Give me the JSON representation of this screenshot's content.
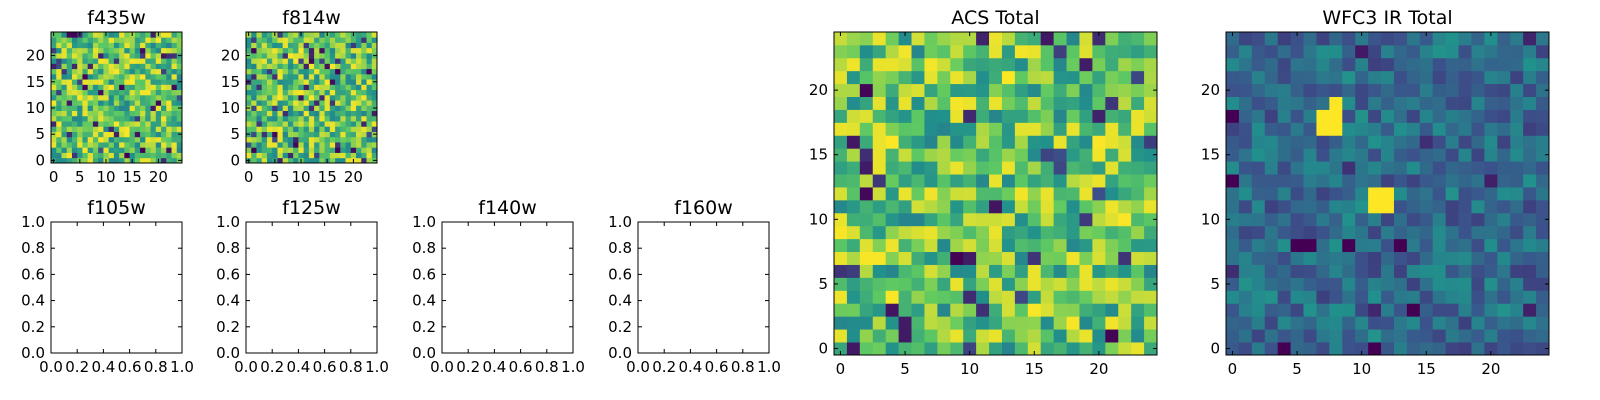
{
  "colormap": "viridis",
  "colors": {
    "background": "#ffffff",
    "axes": "#000000",
    "viridis_stops": [
      "#440154",
      "#3b528b",
      "#21918c",
      "#5ec962",
      "#fde725"
    ]
  },
  "chart_data": [
    {
      "type": "heatmap",
      "title": "f435w",
      "xlabel": "",
      "ylabel": "",
      "xticks": [
        "0",
        "5",
        "10",
        "15",
        "20"
      ],
      "yticks": [
        "0",
        "5",
        "10",
        "15",
        "20"
      ],
      "xlim": [
        -0.5,
        24.5
      ],
      "ylim": [
        -0.5,
        24.5
      ],
      "grid_size": 25,
      "colormap": "viridis",
      "pixel_seed": 11,
      "value_profile": "high-noise",
      "note_values": "25x25 pixel map; individual pixel values are not printed, values normalized 0-1"
    },
    {
      "type": "heatmap",
      "title": "f814w",
      "xlabel": "",
      "ylabel": "",
      "xticks": [
        "0",
        "5",
        "10",
        "15",
        "20"
      ],
      "yticks": [
        "0",
        "5",
        "10",
        "15",
        "20"
      ],
      "xlim": [
        -0.5,
        24.5
      ],
      "ylim": [
        -0.5,
        24.5
      ],
      "grid_size": 25,
      "colormap": "viridis",
      "pixel_seed": 23,
      "value_profile": "high-noise"
    },
    {
      "type": "scatter",
      "title": "f105w",
      "xlabel": "",
      "ylabel": "",
      "xticks": [
        "0.0",
        "0.2",
        "0.4",
        "0.6",
        "0.8",
        "1.0"
      ],
      "yticks": [
        "0.0",
        "0.2",
        "0.4",
        "0.6",
        "0.8",
        "1.0"
      ],
      "xlim": [
        0,
        1
      ],
      "ylim": [
        0,
        1
      ],
      "values": []
    },
    {
      "type": "scatter",
      "title": "f125w",
      "xlabel": "",
      "ylabel": "",
      "xticks": [
        "0.0",
        "0.2",
        "0.4",
        "0.6",
        "0.8",
        "1.0"
      ],
      "yticks": [
        "0.0",
        "0.2",
        "0.4",
        "0.6",
        "0.8",
        "1.0"
      ],
      "xlim": [
        0,
        1
      ],
      "ylim": [
        0,
        1
      ],
      "values": []
    },
    {
      "type": "scatter",
      "title": "f140w",
      "xlabel": "",
      "ylabel": "",
      "xticks": [
        "0.0",
        "0.2",
        "0.4",
        "0.6",
        "0.8",
        "1.0"
      ],
      "yticks": [
        "0.0",
        "0.2",
        "0.4",
        "0.6",
        "0.8",
        "1.0"
      ],
      "xlim": [
        0,
        1
      ],
      "ylim": [
        0,
        1
      ],
      "values": []
    },
    {
      "type": "scatter",
      "title": "f160w",
      "xlabel": "",
      "ylabel": "",
      "xticks": [
        "0.0",
        "0.2",
        "0.4",
        "0.6",
        "0.8",
        "1.0"
      ],
      "yticks": [
        "0.0",
        "0.2",
        "0.4",
        "0.6",
        "0.8",
        "1.0"
      ],
      "xlim": [
        0,
        1
      ],
      "ylim": [
        0,
        1
      ],
      "values": []
    },
    {
      "type": "heatmap",
      "title": "ACS Total",
      "xlabel": "",
      "ylabel": "",
      "xticks": [
        "0",
        "5",
        "10",
        "15",
        "20"
      ],
      "yticks": [
        "0",
        "5",
        "10",
        "15",
        "20"
      ],
      "xlim": [
        -0.5,
        24.5
      ],
      "ylim": [
        -0.5,
        24.5
      ],
      "grid_size": 25,
      "colormap": "viridis",
      "pixel_seed": 37,
      "value_profile": "high-noise"
    },
    {
      "type": "heatmap",
      "title": "WFC3 IR Total",
      "xlabel": "",
      "ylabel": "",
      "xticks": [
        "0",
        "5",
        "10",
        "15",
        "20"
      ],
      "yticks": [
        "0",
        "5",
        "10",
        "15",
        "20"
      ],
      "xlim": [
        -0.5,
        24.5
      ],
      "ylim": [
        -0.5,
        24.5
      ],
      "grid_size": 25,
      "colormap": "viridis",
      "pixel_seed": 53,
      "value_profile": "low-noise",
      "bright_pixels": [
        [
          11,
          11
        ],
        [
          12,
          11
        ],
        [
          11,
          12
        ],
        [
          12,
          12
        ],
        [
          7,
          18
        ],
        [
          8,
          18
        ],
        [
          8,
          19
        ],
        [
          7,
          17
        ],
        [
          8,
          17
        ]
      ],
      "dark_pixels": [
        [
          5,
          8
        ],
        [
          6,
          8
        ],
        [
          4,
          0
        ],
        [
          11,
          0
        ],
        [
          14,
          3
        ],
        [
          13,
          8
        ],
        [
          0,
          13
        ],
        [
          0,
          18
        ],
        [
          9,
          8
        ]
      ]
    }
  ]
}
